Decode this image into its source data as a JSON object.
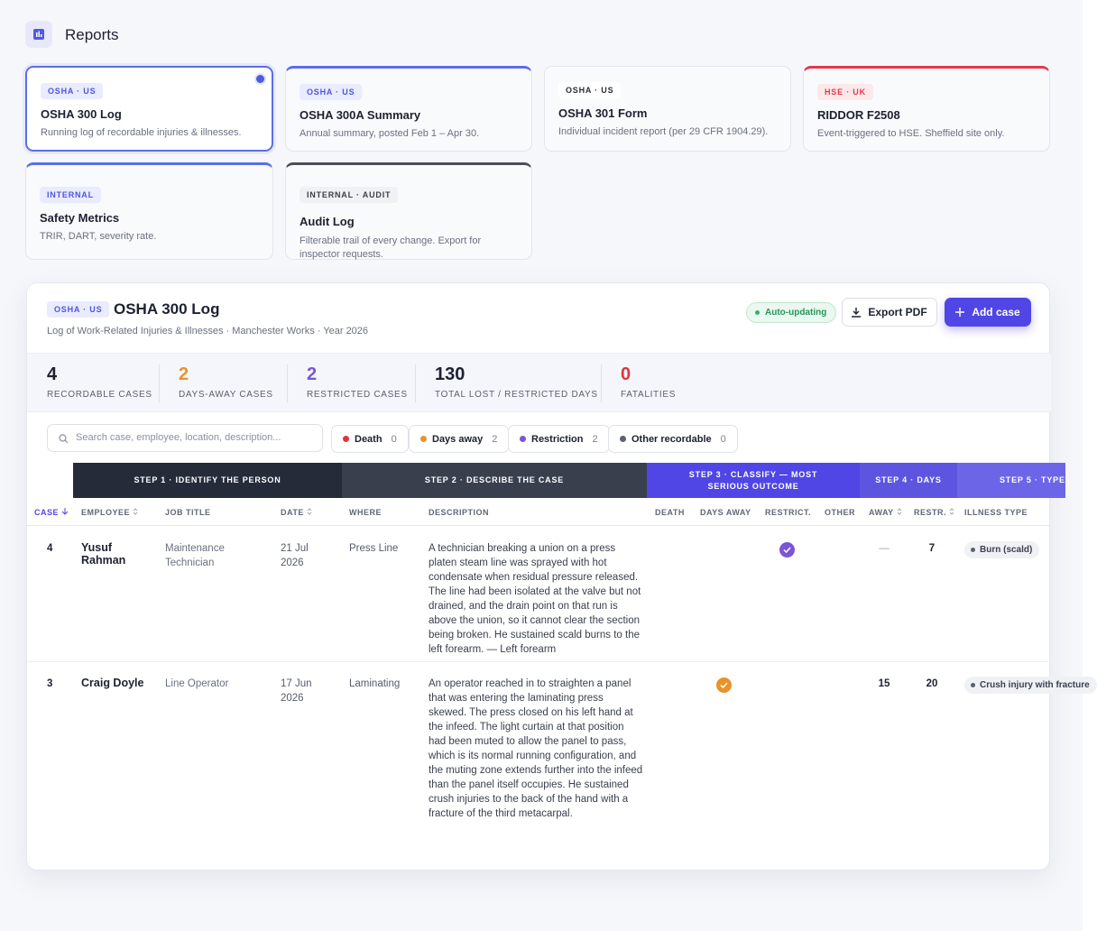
{
  "header": {
    "title": "Reports"
  },
  "cards": [
    {
      "tag": "OSHA · US",
      "title": "OSHA 300 Log",
      "desc": "Running log of recordable injuries & illnesses."
    },
    {
      "tag": "OSHA · US",
      "title": "OSHA 300A Summary",
      "desc": "Annual summary, posted Feb 1 – Apr 30."
    },
    {
      "tag": "OSHA · US",
      "title": "OSHA 301 Form",
      "desc": "Individual incident report (per 29 CFR 1904.29)."
    },
    {
      "tag": "HSE · UK",
      "title": "RIDDOR F2508",
      "desc": "Event-triggered to HSE. Sheffield site only."
    },
    {
      "tag": "INTERNAL",
      "title": "Safety Metrics",
      "desc": "TRIR, DART, severity rate."
    },
    {
      "tag": "INTERNAL · AUDIT",
      "title": "Audit Log",
      "desc": "Filterable trail of every change. Export for inspector requests."
    }
  ],
  "panel": {
    "tag": "OSHA · US",
    "title": "OSHA 300 Log",
    "subtitle": "Log of Work-Related Injuries & Illnesses · Manchester Works · Year 2026",
    "status": "Auto-updating",
    "export": "Export PDF",
    "add": "Add case"
  },
  "stats": [
    {
      "value": 4,
      "label": "RECORDABLE CASES"
    },
    {
      "value": 2,
      "label": "DAYS-AWAY CASES"
    },
    {
      "value": 2,
      "label": "RESTRICTED CASES"
    },
    {
      "value": 130,
      "label": "TOTAL LOST / RESTRICTED DAYS"
    },
    {
      "value": 0,
      "label": "FATALITIES"
    }
  ],
  "search": {
    "placeholder": "Search case, employee, location, description..."
  },
  "filters": [
    {
      "label": "Death",
      "count": 0
    },
    {
      "label": "Days away",
      "count": 2
    },
    {
      "label": "Restriction",
      "count": 2
    },
    {
      "label": "Other recordable",
      "count": 0
    }
  ],
  "table": {
    "steps": [
      "STEP 1 · IDENTIFY THE PERSON",
      "STEP 2 · DESCRIBE THE CASE",
      "STEP 3 · CLASSIFY — MOST SERIOUS OUTCOME",
      "STEP 4 · DAYS",
      "STEP 5 · TYPE"
    ],
    "columns": [
      "CASE",
      "EMPLOYEE",
      "JOB TITLE",
      "DATE",
      "WHERE",
      "DESCRIPTION",
      "DEATH",
      "DAYS AWAY",
      "RESTRICT.",
      "OTHER",
      "AWAY",
      "RESTR.",
      "ILLNESS TYPE"
    ],
    "rows": [
      {
        "case": 4,
        "employee": "Yusuf Rahman",
        "job": "Maintenance Technician",
        "date": "21 Jul 2026",
        "where": "Press Line",
        "description": "A technician breaking a union on a press platen steam line was sprayed with hot condensate when residual pressure released. The line had been isolated at the valve but not drained, and the drain point on that run is above the union, so it cannot clear the section being broken. He sustained scald burns to the left forearm. — Left forearm",
        "outcome": "restriction",
        "away": "—",
        "restr": 7,
        "illness": "Burn (scald)"
      },
      {
        "case": 3,
        "employee": "Craig Doyle",
        "job": "Line Operator",
        "date": "17 Jun 2026",
        "where": "Laminating",
        "description": "An operator reached in to straighten a panel that was entering the laminating press skewed. The press closed on his left hand at the infeed. The light curtain at that position had been muted to allow the panel to pass, which is its normal running configuration, and the muting zone extends further into the infeed than the panel itself occupies. He sustained crush injuries to the back of the hand with a fracture of the third metacarpal.",
        "outcome": "days_away",
        "away": 15,
        "restr": 20,
        "illness": "Crush injury with fracture"
      }
    ]
  }
}
